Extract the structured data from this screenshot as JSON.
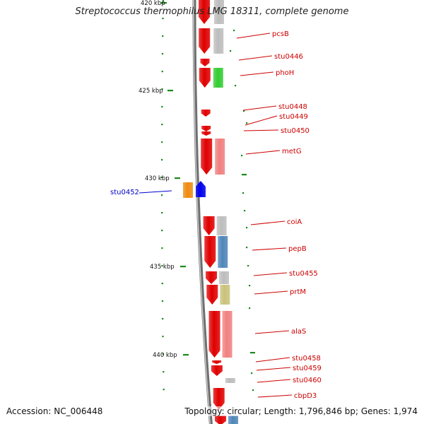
{
  "title": "Streptococcus thermophilus LMG 18311, complete genome",
  "footer": {
    "accession": "Accession: NC_006448",
    "summary": "Topology: circular; Length: 1,796,846 bp; Genes: 1,974"
  },
  "colors": {
    "backbone": "#8a8a8a",
    "tick": "#1a8a1a",
    "strand_forward": "#e00000",
    "label_forward": "#cc0000",
    "label_reverse": "#0000cc",
    "track_grey": "#bdbdbd",
    "track_pink": "#f08080",
    "track_green": "#33cc33",
    "track_steel": "#4f86b8",
    "track_olive": "#c8c27a",
    "track_orange": "#ee8a10",
    "track_blue": "#0000ee"
  },
  "scale_labels": [
    {
      "text": "420 kbp",
      "kbp": 420
    },
    {
      "text": "425 kbp",
      "kbp": 425
    },
    {
      "text": "430 kbp",
      "kbp": 430
    },
    {
      "text": "435 kbp",
      "kbp": 435
    },
    {
      "text": "440 kbp",
      "kbp": 440
    }
  ],
  "genes": [
    {
      "label": "pcsB",
      "strand": "forward"
    },
    {
      "label": "stu0446",
      "strand": "forward"
    },
    {
      "label": "phoH",
      "strand": "forward"
    },
    {
      "label": "stu0448",
      "strand": "forward"
    },
    {
      "label": "stu0449",
      "strand": "forward"
    },
    {
      "label": "stu0450",
      "strand": "forward"
    },
    {
      "label": "metG",
      "strand": "forward"
    },
    {
      "label": "stu0452",
      "strand": "reverse"
    },
    {
      "label": "coiA",
      "strand": "forward"
    },
    {
      "label": "pepB",
      "strand": "forward"
    },
    {
      "label": "stu0455",
      "strand": "forward"
    },
    {
      "label": "prtM",
      "strand": "forward"
    },
    {
      "label": "alaS",
      "strand": "forward"
    },
    {
      "label": "stu0458",
      "strand": "forward"
    },
    {
      "label": "stu0459",
      "strand": "forward"
    },
    {
      "label": "stu0460",
      "strand": "forward"
    },
    {
      "label": "cbpD3",
      "strand": "forward"
    }
  ]
}
